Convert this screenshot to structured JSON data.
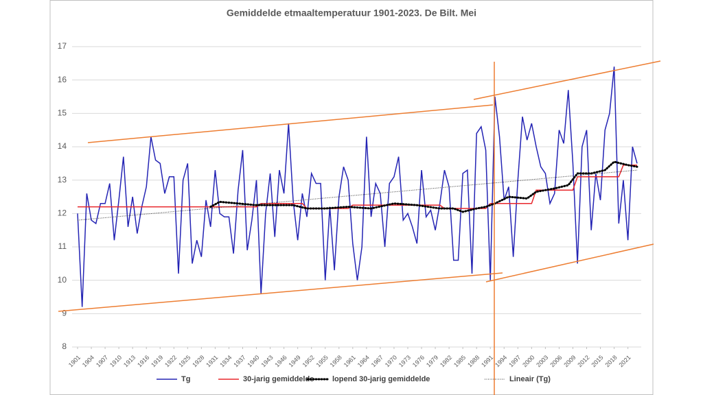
{
  "chart_data": {
    "type": "line",
    "title": "Gemiddelde etmaaltemperatuur 1901-2023. De Bilt. Mei",
    "x": [
      1901,
      1902,
      1903,
      1904,
      1905,
      1906,
      1907,
      1908,
      1909,
      1910,
      1911,
      1912,
      1913,
      1914,
      1915,
      1916,
      1917,
      1918,
      1919,
      1920,
      1921,
      1922,
      1923,
      1924,
      1925,
      1926,
      1927,
      1928,
      1929,
      1930,
      1931,
      1932,
      1933,
      1934,
      1935,
      1936,
      1937,
      1938,
      1939,
      1940,
      1941,
      1942,
      1943,
      1944,
      1945,
      1946,
      1947,
      1948,
      1949,
      1950,
      1951,
      1952,
      1953,
      1954,
      1955,
      1956,
      1957,
      1958,
      1959,
      1960,
      1961,
      1962,
      1963,
      1964,
      1965,
      1966,
      1967,
      1968,
      1969,
      1970,
      1971,
      1972,
      1973,
      1974,
      1975,
      1976,
      1977,
      1978,
      1979,
      1980,
      1981,
      1982,
      1983,
      1984,
      1985,
      1986,
      1987,
      1988,
      1989,
      1990,
      1991,
      1992,
      1993,
      1994,
      1995,
      1996,
      1997,
      1998,
      1999,
      2000,
      2001,
      2002,
      2003,
      2004,
      2005,
      2006,
      2007,
      2008,
      2009,
      2010,
      2011,
      2012,
      2013,
      2014,
      2015,
      2016,
      2017,
      2018,
      2019,
      2020,
      2021,
      2022,
      2023
    ],
    "xlim": [
      1901,
      2023
    ],
    "xticks": [
      1901,
      1904,
      1907,
      1910,
      1913,
      1916,
      1919,
      1922,
      1925,
      1928,
      1931,
      1934,
      1937,
      1940,
      1943,
      1946,
      1949,
      1952,
      1955,
      1958,
      1961,
      1964,
      1967,
      1970,
      1973,
      1976,
      1979,
      1982,
      1985,
      1988,
      1991,
      1994,
      1997,
      2000,
      2003,
      2006,
      2009,
      2012,
      2015,
      2018,
      2021
    ],
    "ylim": [
      8,
      17
    ],
    "yticks": [
      8,
      9,
      10,
      11,
      12,
      13,
      14,
      15,
      16,
      17
    ],
    "grid": true,
    "series": [
      {
        "name": "Tg",
        "color": "#2424b4",
        "style": "solid",
        "width": 1.5,
        "values": [
          12.0,
          9.2,
          12.6,
          11.8,
          11.7,
          12.3,
          12.3,
          12.9,
          11.2,
          12.4,
          13.7,
          11.6,
          12.5,
          11.4,
          12.2,
          12.8,
          14.3,
          13.6,
          13.5,
          12.6,
          13.1,
          13.1,
          10.2,
          13.0,
          13.5,
          10.5,
          11.2,
          10.7,
          12.4,
          11.6,
          13.3,
          12.0,
          11.9,
          11.9,
          10.8,
          12.7,
          13.9,
          10.9,
          11.8,
          13.0,
          9.6,
          12.0,
          13.2,
          11.3,
          13.3,
          12.6,
          14.7,
          12.4,
          11.2,
          12.6,
          11.9,
          13.2,
          12.9,
          12.9,
          10.0,
          12.2,
          10.3,
          12.5,
          13.4,
          13.0,
          11.1,
          10.0,
          11.0,
          14.3,
          11.9,
          12.9,
          12.6,
          11.0,
          12.9,
          13.1,
          13.7,
          11.8,
          12.0,
          11.6,
          11.1,
          13.3,
          11.9,
          12.1,
          11.5,
          12.3,
          13.3,
          12.8,
          10.6,
          10.6,
          13.2,
          13.3,
          10.2,
          14.4,
          14.6,
          13.9,
          10.0,
          15.5,
          14.3,
          12.4,
          12.8,
          10.7,
          13.0,
          14.9,
          14.2,
          14.7,
          14.0,
          13.4,
          13.2,
          12.3,
          12.6,
          14.5,
          14.1,
          15.7,
          13.5,
          10.5,
          14.0,
          14.5,
          11.5,
          13.2,
          12.4,
          14.5,
          15.0,
          16.4,
          11.7,
          13.0,
          11.2,
          14.0,
          13.5
        ]
      },
      {
        "name": "30-jarig gemiddelde",
        "color": "#e8262b",
        "style": "solid",
        "width": 1.5,
        "x": [
          1901,
          1940,
          1941,
          1950,
          1951,
          1960,
          1961,
          1980,
          1981,
          1990,
          1991,
          2000,
          2001,
          2009,
          2010,
          2019,
          2020,
          2023
        ],
        "values": [
          12.2,
          12.2,
          12.3,
          12.3,
          12.15,
          12.15,
          12.25,
          12.25,
          12.15,
          12.15,
          12.3,
          12.3,
          12.7,
          12.7,
          13.1,
          13.1,
          13.45,
          13.45
        ]
      },
      {
        "name": "lopend 30-jarig gemiddelde",
        "color": "#000000",
        "style": "dotted",
        "width": 3,
        "x": [
          1930,
          1932,
          1936,
          1940,
          1944,
          1948,
          1951,
          1955,
          1960,
          1965,
          1970,
          1975,
          1980,
          1983,
          1985,
          1988,
          1990,
          1992,
          1995,
          1999,
          2001,
          2005,
          2008,
          2010,
          2013,
          2016,
          2018,
          2021,
          2023
        ],
        "values": [
          12.2,
          12.35,
          12.3,
          12.25,
          12.25,
          12.25,
          12.15,
          12.15,
          12.2,
          12.15,
          12.3,
          12.25,
          12.15,
          12.15,
          12.05,
          12.15,
          12.2,
          12.3,
          12.5,
          12.45,
          12.65,
          12.75,
          12.85,
          13.2,
          13.2,
          13.3,
          13.55,
          13.45,
          13.4
        ]
      },
      {
        "name": "Lineair (Tg)",
        "color": "#333333",
        "style": "fine",
        "width": 1,
        "x": [
          1901,
          2023
        ],
        "values": [
          11.8,
          13.3
        ]
      }
    ]
  }
}
